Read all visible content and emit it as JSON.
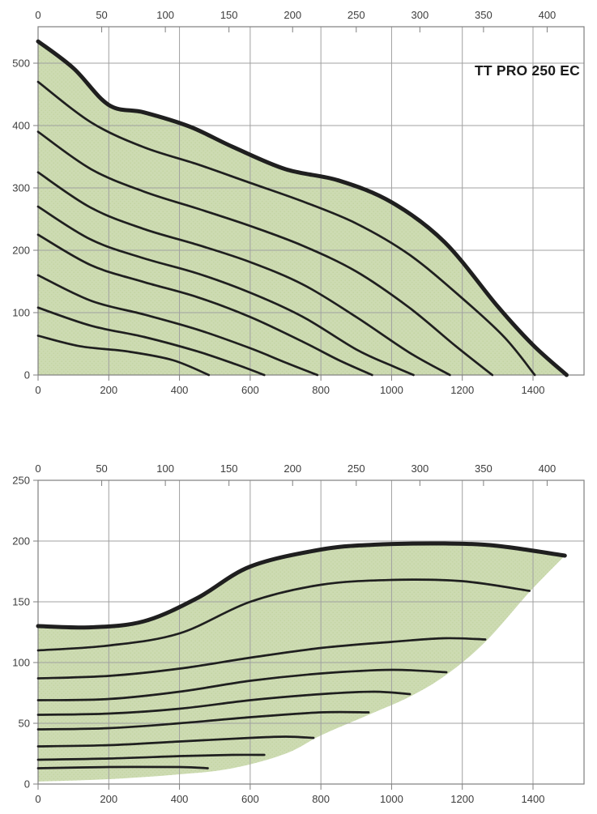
{
  "page": {
    "background": "#ffffff"
  },
  "colors": {
    "area_fill": "#cddbb2",
    "area_dot": "#b7cc92",
    "curve": "#1f1f1f",
    "grid": "#a0a0a0",
    "axis": "#7f7f7f",
    "label": "#3d3d3d",
    "title": "#1a1a1a"
  },
  "chart_data": [
    {
      "type": "line",
      "title": "TT PRO 250 EC",
      "x_axis_top": {
        "ticks": [
          0,
          50,
          100,
          150,
          200,
          250,
          300,
          350,
          400
        ]
      },
      "x_axis_bottom": {
        "ticks": [
          0,
          200,
          400,
          600,
          800,
          1000,
          1200,
          1400
        ],
        "max": 1545
      },
      "y_axis": {
        "ticks": [
          0,
          100,
          200,
          300,
          400,
          500
        ],
        "max": 558
      },
      "grid": true,
      "legend": false,
      "series": [
        {
          "name": "pressure-curve-max",
          "thick": true,
          "points": [
            [
              0,
              535
            ],
            [
              100,
              492
            ],
            [
              200,
              433
            ],
            [
              300,
              421
            ],
            [
              430,
              398
            ],
            [
              550,
              366
            ],
            [
              700,
              330
            ],
            [
              850,
              312
            ],
            [
              1000,
              277
            ],
            [
              1150,
              213
            ],
            [
              1300,
              110
            ],
            [
              1400,
              48
            ],
            [
              1495,
              0
            ]
          ]
        },
        {
          "name": "pressure-curve-8",
          "points": [
            [
              0,
              470
            ],
            [
              150,
              405
            ],
            [
              300,
              365
            ],
            [
              450,
              338
            ],
            [
              600,
              308
            ],
            [
              750,
              278
            ],
            [
              900,
              243
            ],
            [
              1050,
              193
            ],
            [
              1200,
              123
            ],
            [
              1320,
              60
            ],
            [
              1405,
              0
            ]
          ]
        },
        {
          "name": "pressure-curve-7",
          "points": [
            [
              0,
              390
            ],
            [
              150,
              330
            ],
            [
              300,
              294
            ],
            [
              450,
              267
            ],
            [
              600,
              239
            ],
            [
              750,
              207
            ],
            [
              900,
              166
            ],
            [
              1050,
              108
            ],
            [
              1180,
              47
            ],
            [
              1285,
              0
            ]
          ]
        },
        {
          "name": "pressure-curve-6",
          "points": [
            [
              0,
              325
            ],
            [
              150,
              268
            ],
            [
              300,
              234
            ],
            [
              450,
              209
            ],
            [
              600,
              181
            ],
            [
              750,
              145
            ],
            [
              900,
              93
            ],
            [
              1050,
              36
            ],
            [
              1165,
              0
            ]
          ]
        },
        {
          "name": "pressure-curve-5",
          "points": [
            [
              0,
              270
            ],
            [
              150,
              217
            ],
            [
              300,
              187
            ],
            [
              450,
              163
            ],
            [
              600,
              132
            ],
            [
              750,
              93
            ],
            [
              900,
              41
            ],
            [
              1000,
              15
            ],
            [
              1062,
              0
            ]
          ]
        },
        {
          "name": "pressure-curve-4",
          "points": [
            [
              0,
              225
            ],
            [
              150,
              176
            ],
            [
              300,
              149
            ],
            [
              450,
              125
            ],
            [
              600,
              93
            ],
            [
              750,
              53
            ],
            [
              850,
              24
            ],
            [
              945,
              0
            ]
          ]
        },
        {
          "name": "pressure-curve-3",
          "points": [
            [
              0,
              160
            ],
            [
              150,
              119
            ],
            [
              300,
              97
            ],
            [
              450,
              73
            ],
            [
              600,
              43
            ],
            [
              700,
              20
            ],
            [
              790,
              0
            ]
          ]
        },
        {
          "name": "pressure-curve-2",
          "points": [
            [
              0,
              108
            ],
            [
              150,
              79
            ],
            [
              300,
              61
            ],
            [
              450,
              38
            ],
            [
              560,
              17
            ],
            [
              640,
              0
            ]
          ]
        },
        {
          "name": "pressure-curve-1",
          "points": [
            [
              0,
              63
            ],
            [
              120,
              46
            ],
            [
              250,
              38
            ],
            [
              380,
              24
            ],
            [
              483,
              0
            ]
          ]
        }
      ],
      "area": {
        "along": "pressure-curve-max",
        "to_baseline": true
      }
    },
    {
      "type": "line",
      "title": "",
      "x_axis_top": {
        "ticks": [
          0,
          50,
          100,
          150,
          200,
          250,
          300,
          350,
          400
        ]
      },
      "x_axis_bottom": {
        "ticks": [
          0,
          200,
          400,
          600,
          800,
          1000,
          1200,
          1400
        ],
        "max": 1545
      },
      "y_axis": {
        "ticks": [
          0,
          50,
          100,
          150,
          200,
          250
        ],
        "max": 250
      },
      "grid": true,
      "legend": false,
      "series": [
        {
          "name": "power-curve-max",
          "thick": true,
          "points": [
            [
              0,
              130
            ],
            [
              150,
              129
            ],
            [
              300,
              134
            ],
            [
              450,
              153
            ],
            [
              600,
              179
            ],
            [
              800,
              193
            ],
            [
              950,
              197
            ],
            [
              1150,
              198
            ],
            [
              1300,
              196
            ],
            [
              1490,
              188
            ]
          ]
        },
        {
          "name": "power-curve-8",
          "points": [
            [
              0,
              110
            ],
            [
              200,
              114
            ],
            [
              400,
              124
            ],
            [
              600,
              150
            ],
            [
              800,
              164
            ],
            [
              1000,
              168
            ],
            [
              1200,
              167
            ],
            [
              1390,
              159
            ]
          ]
        },
        {
          "name": "power-curve-7",
          "points": [
            [
              0,
              87
            ],
            [
              200,
              89
            ],
            [
              400,
              95
            ],
            [
              600,
              104
            ],
            [
              800,
              112
            ],
            [
              1000,
              117
            ],
            [
              1150,
              120
            ],
            [
              1265,
              119
            ]
          ]
        },
        {
          "name": "power-curve-6",
          "points": [
            [
              0,
              69
            ],
            [
              200,
              70
            ],
            [
              400,
              76
            ],
            [
              600,
              85
            ],
            [
              800,
              91
            ],
            [
              1000,
              94
            ],
            [
              1155,
              92
            ]
          ]
        },
        {
          "name": "power-curve-5",
          "points": [
            [
              0,
              57
            ],
            [
              200,
              58
            ],
            [
              400,
              62
            ],
            [
              600,
              69
            ],
            [
              800,
              74
            ],
            [
              950,
              76
            ],
            [
              1052,
              74
            ]
          ]
        },
        {
          "name": "power-curve-4",
          "points": [
            [
              0,
              45
            ],
            [
              200,
              46
            ],
            [
              400,
              50
            ],
            [
              600,
              55
            ],
            [
              800,
              59
            ],
            [
              935,
              59
            ]
          ]
        },
        {
          "name": "power-curve-3",
          "points": [
            [
              0,
              31
            ],
            [
              200,
              32
            ],
            [
              400,
              35
            ],
            [
              600,
              38
            ],
            [
              700,
              39
            ],
            [
              779,
              38
            ]
          ]
        },
        {
          "name": "power-curve-2",
          "points": [
            [
              0,
              20
            ],
            [
              200,
              21
            ],
            [
              400,
              23
            ],
            [
              550,
              24
            ],
            [
              640,
              24
            ]
          ]
        },
        {
          "name": "power-curve-1",
          "points": [
            [
              0,
              13
            ],
            [
              200,
              14
            ],
            [
              400,
              14
            ],
            [
              480,
              13
            ]
          ]
        }
      ],
      "lower_boundary": [
        [
          0,
          2
        ],
        [
          200,
          4
        ],
        [
          400,
          8
        ],
        [
          550,
          13
        ],
        [
          700,
          25
        ],
        [
          800,
          40
        ],
        [
          935,
          57
        ],
        [
          1052,
          72
        ],
        [
          1155,
          90
        ],
        [
          1265,
          117
        ],
        [
          1390,
          158
        ],
        [
          1490,
          188
        ]
      ]
    }
  ]
}
